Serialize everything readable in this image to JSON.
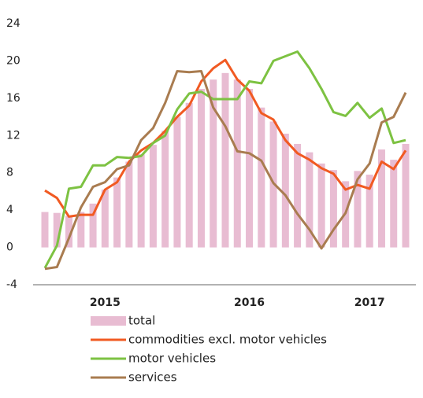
{
  "chart_data": {
    "type": "bar-line",
    "categories": [
      null,
      null,
      null,
      null,
      null,
      "2015",
      null,
      null,
      null,
      null,
      null,
      null,
      null,
      null,
      null,
      null,
      null,
      "2016",
      null,
      null,
      null,
      null,
      null,
      null,
      null,
      null,
      null,
      "2017",
      null,
      null,
      null
    ],
    "ylim": [
      -4,
      24
    ],
    "yticks": [
      24,
      20,
      16,
      12,
      8,
      4,
      0,
      -4
    ],
    "series": [
      {
        "name": "total",
        "kind": "bar",
        "color": "#e8bcd2",
        "values": [
          3.8,
          3.7,
          3.4,
          3.8,
          4.7,
          6.2,
          7.5,
          9.2,
          10.0,
          11.0,
          12.5,
          14.0,
          15.5,
          17.0,
          18.0,
          18.7,
          18.0,
          17.0,
          15.0,
          13.5,
          12.2,
          11.1,
          10.2,
          9.0,
          8.3,
          7.1,
          8.2,
          7.8,
          10.5,
          9.4,
          11.1
        ]
      },
      {
        "name": "commodities excl. motor vehicles",
        "kind": "line",
        "color": "#f15a22",
        "values": [
          6.1,
          5.3,
          3.3,
          3.5,
          3.5,
          6.2,
          7.0,
          9.2,
          10.4,
          11.2,
          12.5,
          14.0,
          15.2,
          17.8,
          19.2,
          20.1,
          18.0,
          16.8,
          14.4,
          13.7,
          11.5,
          10.1,
          9.4,
          8.5,
          7.9,
          6.2,
          6.7,
          6.3,
          9.2,
          8.4,
          10.4
        ]
      },
      {
        "name": "motor vehicles",
        "kind": "line",
        "color": "#7dc242",
        "values": [
          -2.2,
          0.2,
          6.3,
          6.5,
          8.8,
          8.8,
          9.7,
          9.6,
          9.8,
          11.2,
          12.0,
          14.8,
          16.5,
          16.7,
          15.9,
          15.9,
          15.9,
          17.8,
          17.6,
          20.0,
          20.5,
          21.0,
          19.2,
          17.0,
          14.5,
          14.1,
          15.5,
          13.9,
          14.9,
          11.2,
          11.5
        ]
      },
      {
        "name": "services",
        "kind": "line",
        "color": "#a97c50",
        "values": [
          -2.3,
          -2.1,
          1.0,
          4.3,
          6.5,
          7.0,
          8.4,
          8.8,
          11.5,
          12.8,
          15.5,
          18.9,
          18.8,
          18.9,
          15.0,
          13.0,
          10.3,
          10.1,
          9.3,
          6.9,
          5.6,
          3.6,
          1.9,
          -0.1,
          1.9,
          3.7,
          7.3,
          9.0,
          13.4,
          14.0,
          16.6
        ]
      }
    ]
  }
}
